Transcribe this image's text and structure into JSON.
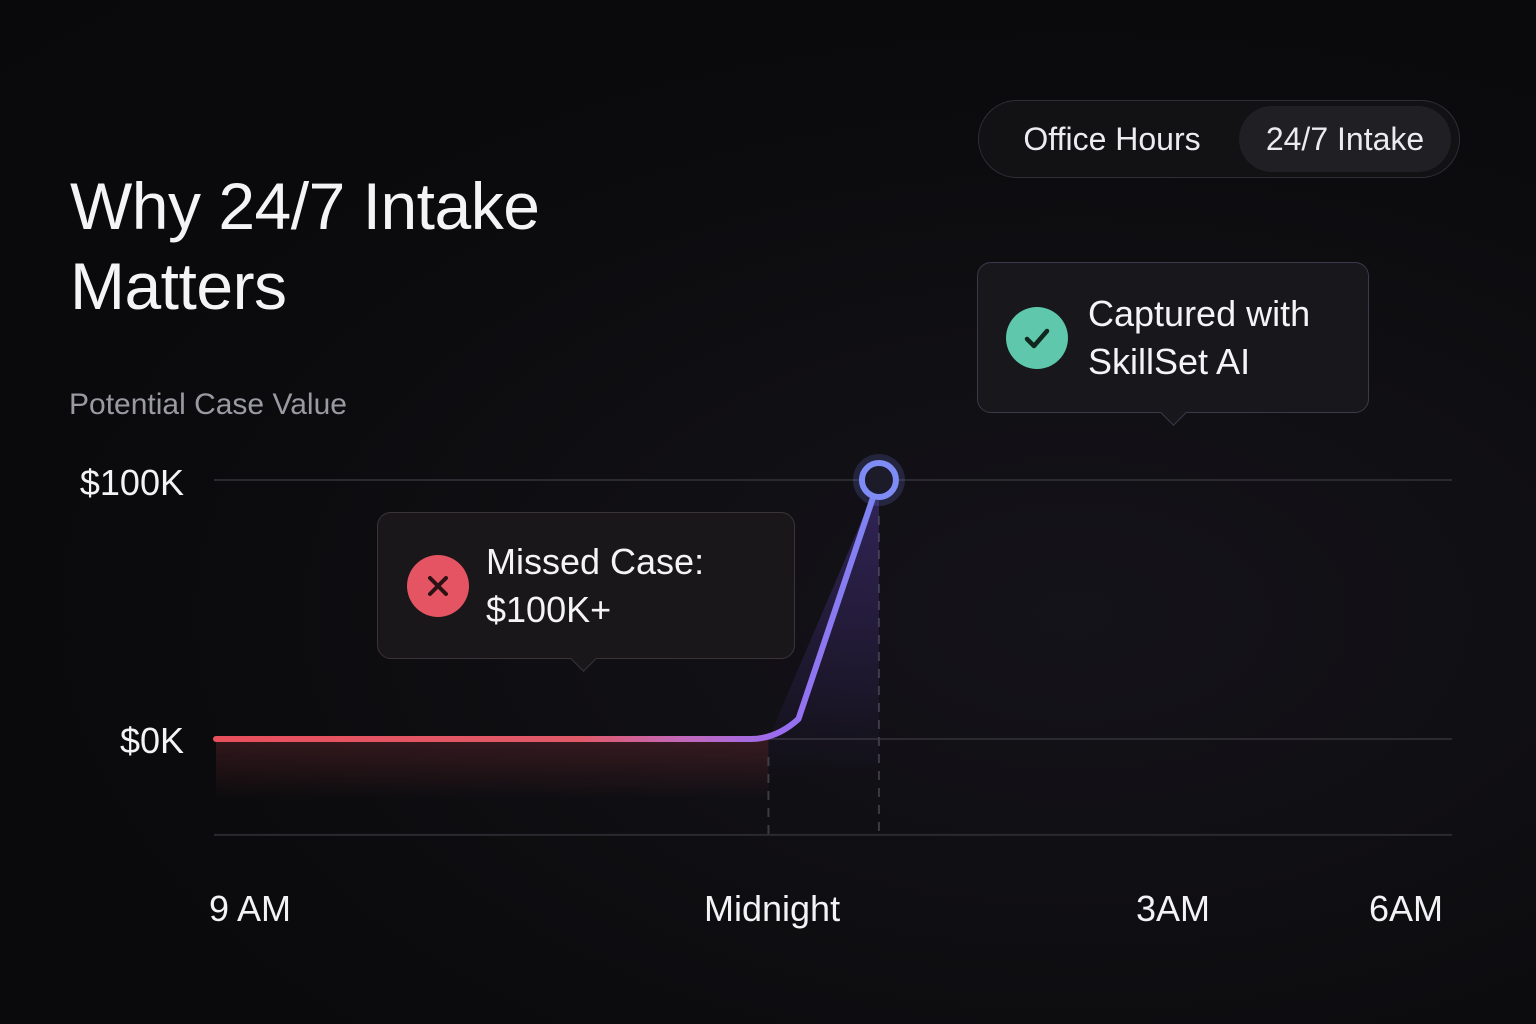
{
  "title": "Why 24/7 Intake Matters",
  "toggle": {
    "options": [
      "Office Hours",
      "24/7 Intake"
    ],
    "selected": "24/7 Intake"
  },
  "callouts": {
    "missed": {
      "text": "Missed Case: $100K+",
      "icon": "x-icon",
      "color": "#e45462"
    },
    "captured": {
      "text": "Captured with SkillSet AI",
      "icon": "check-icon",
      "color": "#5fc7ab"
    }
  },
  "chart_data": {
    "type": "line",
    "ylabel": "Potential Case Value",
    "y_tick_labels": [
      "$100K",
      "$0K"
    ],
    "y_ticks": [
      100,
      0
    ],
    "ylim": [
      -37,
      100
    ],
    "x_tick_labels": [
      "9 AM",
      "Midnight",
      "3AM",
      "6AM"
    ],
    "x_hours": [
      0,
      15,
      18,
      21
    ],
    "series": [
      {
        "x": [
          0,
          15
        ],
        "y": [
          0,
          0
        ],
        "color": "#e8505c"
      },
      {
        "x": [
          15,
          18
        ],
        "y": [
          0,
          100
        ],
        "color": "#8b6cf0"
      }
    ],
    "marker": {
      "x": 18,
      "y": 100
    },
    "reference_lines_x": [
      15,
      18
    ],
    "grid": true
  }
}
